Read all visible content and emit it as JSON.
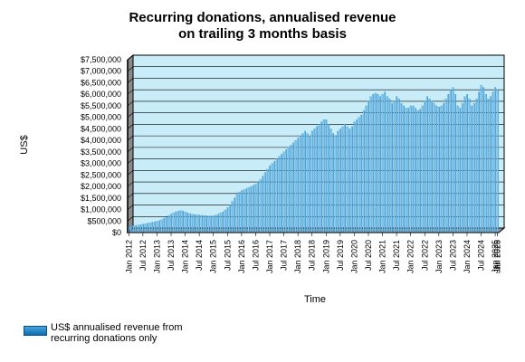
{
  "chart_data": {
    "type": "bar",
    "title_lines": [
      "Recurring donations, annualised revenue",
      "on trailing 3 months basis"
    ],
    "xlabel": "Time",
    "ylabel": "US$",
    "ylim": [
      0,
      7500000
    ],
    "y_ticks": [
      "$0",
      "$500,000",
      "$1,000,000",
      "$1,500,000",
      "$2,000,000",
      "$2,500,000",
      "$3,000,000",
      "$3,500,000",
      "$4,000,000",
      "$4,500,000",
      "$5,000,000",
      "$5,500,000",
      "$6,000,000",
      "$6,500,000",
      "$7,000,000",
      "$7,500,000"
    ],
    "x_tick_labels": [
      "Jan 2012",
      "Jul 2012",
      "Jan 2013",
      "Jul 2013",
      "Jan 2014",
      "Jul 2014",
      "Jan 2015",
      "Jul 2015",
      "Jan 2016",
      "Jul 2016",
      "Jan 2017",
      "Jul 2017",
      "Jan 2018",
      "Jul 2018",
      "Jan 2019",
      "Jul 2019",
      "Jan 2020",
      "Jul 2020",
      "Jan 2021",
      "Jul 2021",
      "Jan 2022",
      "Jul 2022",
      "Jan 2023",
      "Jul 2023",
      "Jan 2024",
      "Jul 2024",
      "Jan 2025",
      "Jul 2025",
      "Jan 2026"
    ],
    "grid": true,
    "legend_position": "bottom-left",
    "series": [
      {
        "name": "US$ annualised revenue from recurring donations only",
        "color": "#1f8fd0",
        "values": [
          250000,
          280000,
          300000,
          310000,
          320000,
          340000,
          360000,
          380000,
          400000,
          420000,
          450000,
          470000,
          490000,
          520000,
          560000,
          620000,
          680000,
          740000,
          800000,
          850000,
          900000,
          930000,
          950000,
          940000,
          900000,
          860000,
          820000,
          800000,
          780000,
          770000,
          760000,
          750000,
          740000,
          730000,
          720000,
          720000,
          730000,
          760000,
          800000,
          850000,
          900000,
          980000,
          1080000,
          1200000,
          1350000,
          1500000,
          1650000,
          1750000,
          1820000,
          1860000,
          1900000,
          1950000,
          2000000,
          2050000,
          2100000,
          2200000,
          2300000,
          2450000,
          2600000,
          2750000,
          2900000,
          3000000,
          3100000,
          3200000,
          3300000,
          3400000,
          3500000,
          3600000,
          3700000,
          3800000,
          3900000,
          4000000,
          4100000,
          4200000,
          4300000,
          4400000,
          4300000,
          4200000,
          4400000,
          4500000,
          4600000,
          4700000,
          4800000,
          4900000,
          4900000,
          4700000,
          4500000,
          4300000,
          4200000,
          4400000,
          4500000,
          4600000,
          4700000,
          4600000,
          4500000,
          4600000,
          4800000,
          4900000,
          5000000,
          5100000,
          5300000,
          5500000,
          5700000,
          5900000,
          6000000,
          6050000,
          6000000,
          5900000,
          6000000,
          6100000,
          5900000,
          5800000,
          5600000,
          5700000,
          5900000,
          5800000,
          5600000,
          5500000,
          5400000,
          5400000,
          5500000,
          5500000,
          5400000,
          5300000,
          5350000,
          5500000,
          5700000,
          5900000,
          5800000,
          5700000,
          5600000,
          5500000,
          5450000,
          5500000,
          5600000,
          5800000,
          6000000,
          6200000,
          6300000,
          6000000,
          5500000,
          5400000,
          5600000,
          5900000,
          6000000,
          5800000,
          5500000,
          5600000,
          5800000,
          6100000,
          6400000,
          6300000,
          6000000,
          5800000,
          5900000,
          6100000,
          6300000,
          6200000
        ]
      }
    ]
  }
}
